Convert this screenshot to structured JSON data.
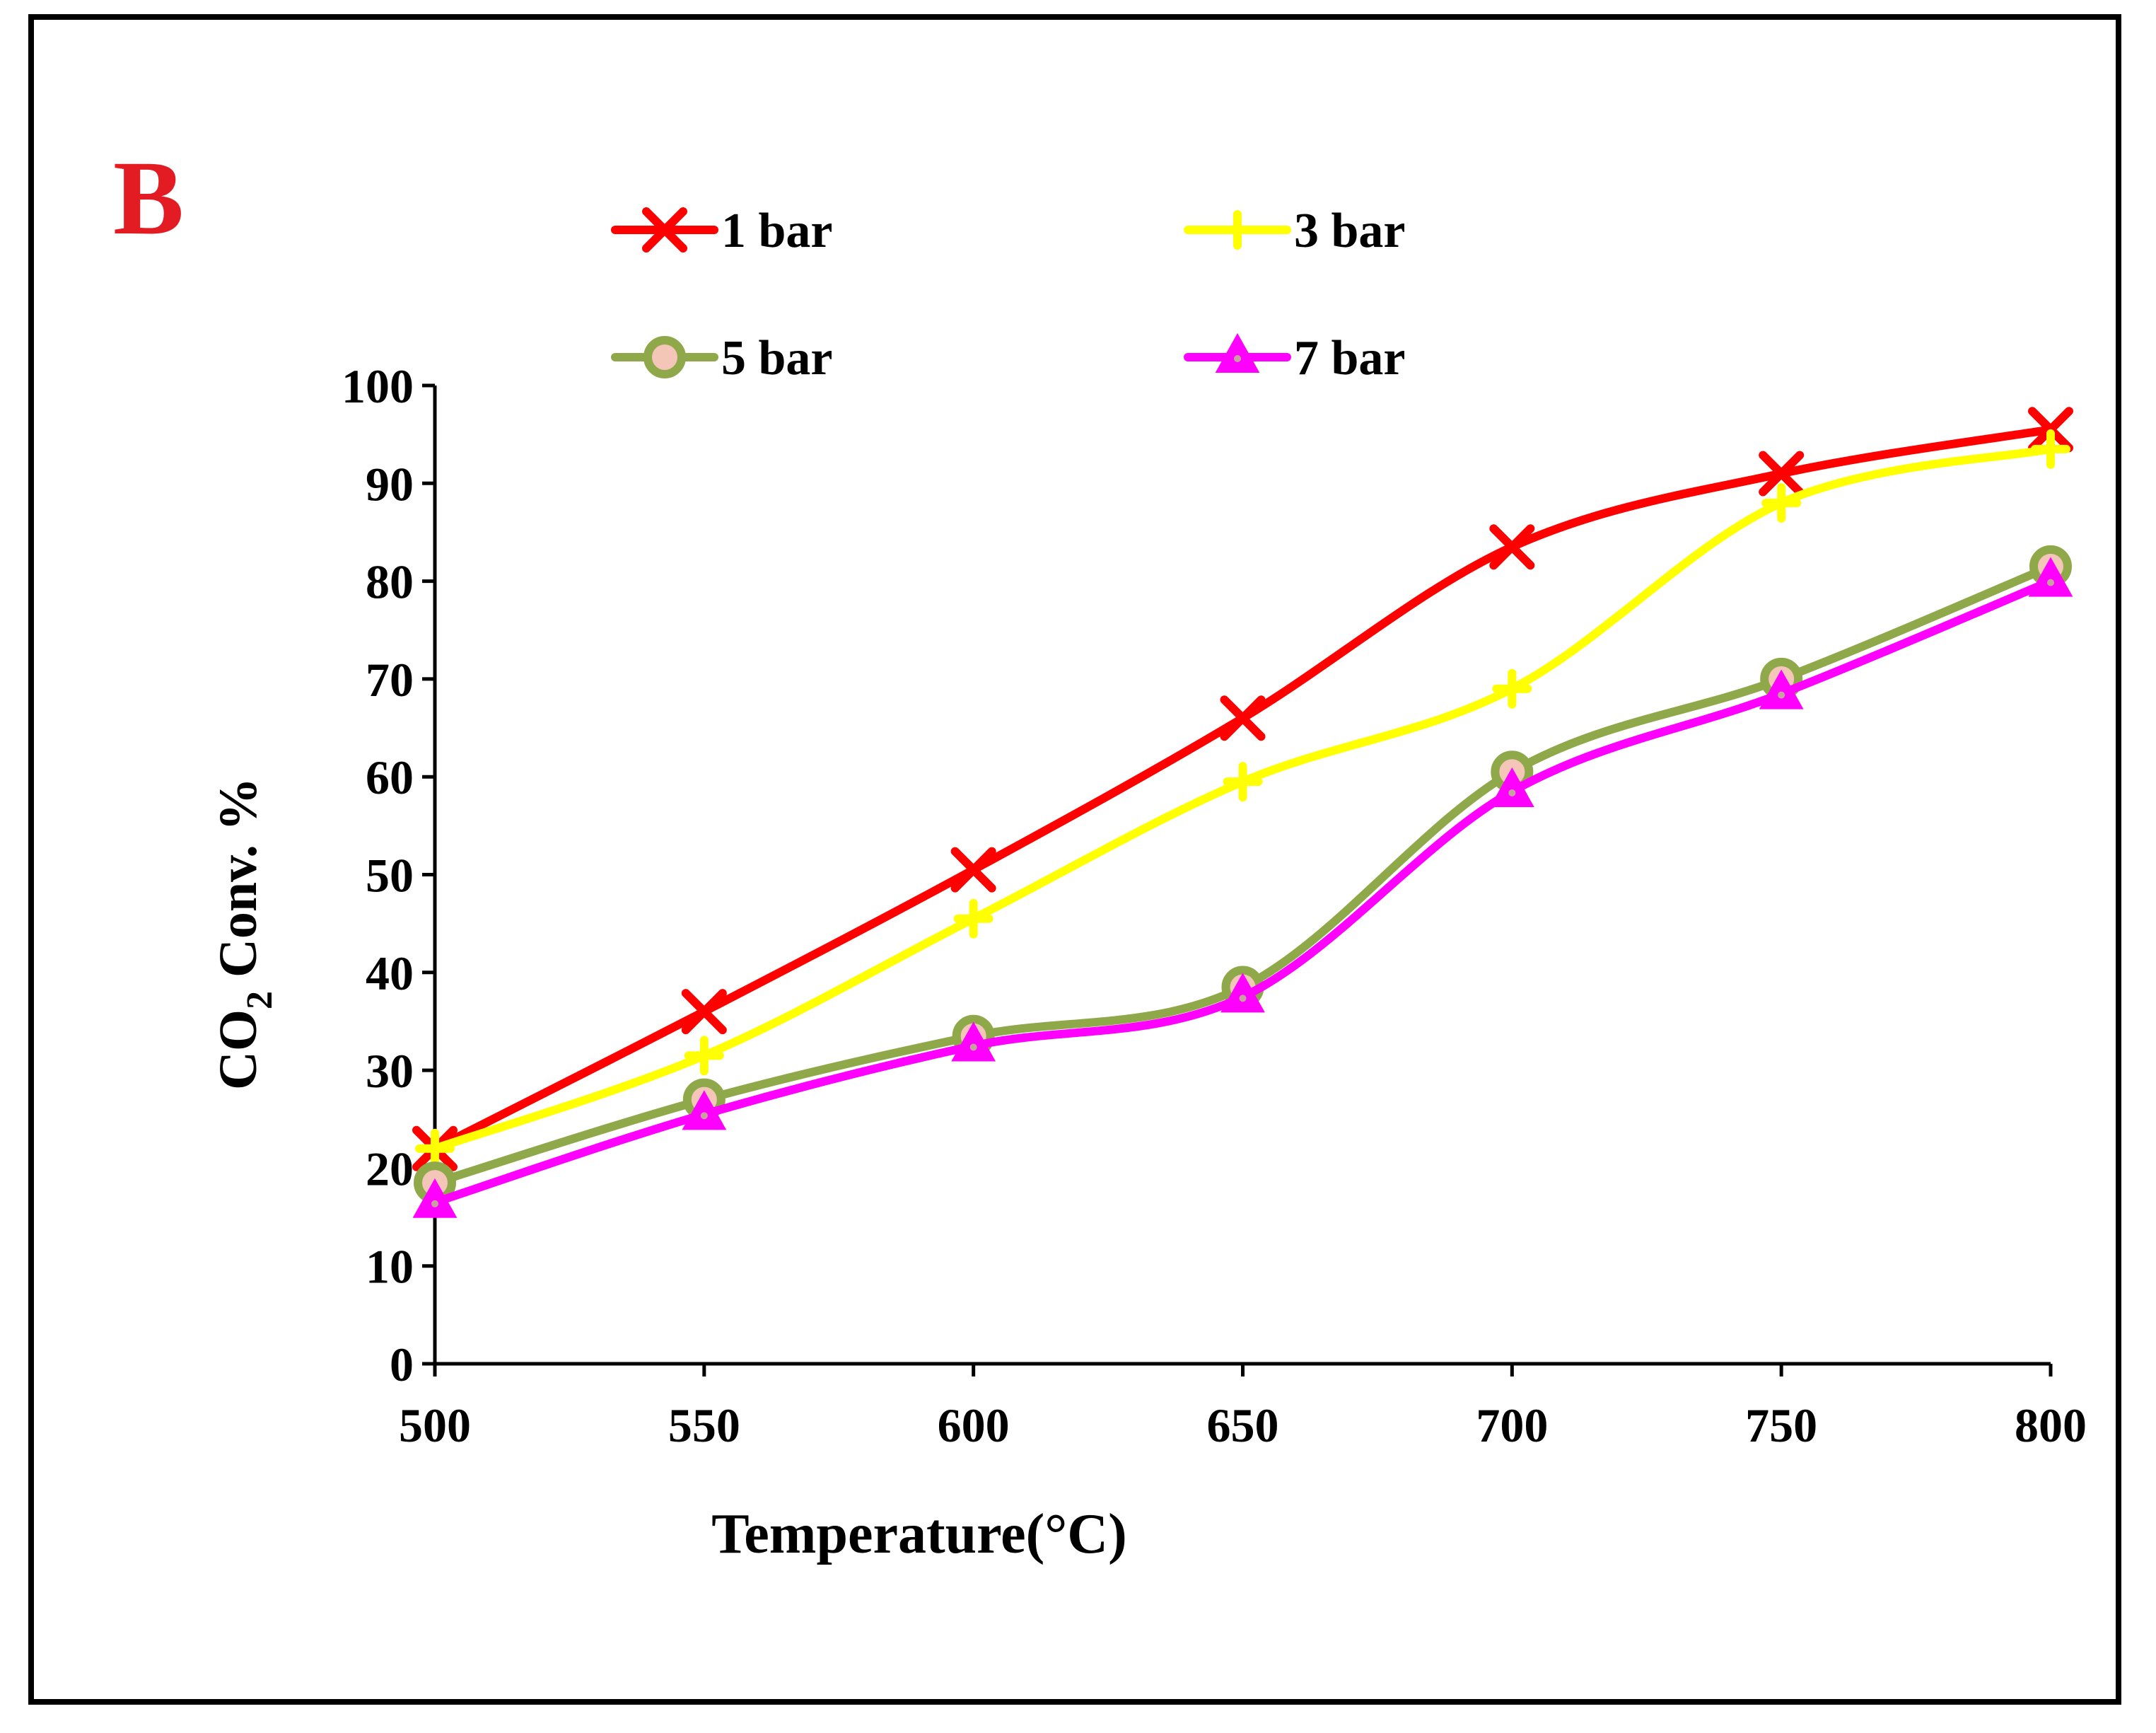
{
  "chart_data": {
    "type": "line",
    "panel_label": "B",
    "xlabel": "Temperature",
    "xlabel_unit": "(°C)",
    "ylabel_prefix": "CO",
    "ylabel_sub": "2",
    "ylabel_suffix": " Conv. %",
    "x": [
      500,
      550,
      600,
      650,
      700,
      750,
      800
    ],
    "xlim": [
      500,
      800
    ],
    "ylim": [
      0,
      100
    ],
    "xticks": [
      "500",
      "550",
      "600",
      "650",
      "700",
      "750",
      "800"
    ],
    "yticks": [
      "0",
      "10",
      "20",
      "30",
      "40",
      "50",
      "60",
      "70",
      "80",
      "90",
      "100"
    ],
    "grid": false,
    "legend_position": "top",
    "series": [
      {
        "name": "1 bar",
        "values": [
          22,
          36,
          50.5,
          66,
          83.5,
          91,
          95.5
        ],
        "color": "#ff0000",
        "marker": "x"
      },
      {
        "name": "3 bar",
        "values": [
          22,
          31.5,
          45.5,
          59.5,
          69,
          88,
          93.5
        ],
        "color": "#ffff00",
        "marker": "plus"
      },
      {
        "name": "5 bar",
        "values": [
          18.5,
          27,
          33.5,
          38.5,
          60.5,
          70,
          81.5
        ],
        "color": "#8fa84a",
        "marker": "circle"
      },
      {
        "name": "7 bar",
        "values": [
          16.5,
          25.5,
          32.5,
          37.5,
          58.5,
          68.5,
          80
        ],
        "color": "#ff00ff",
        "marker": "triangle"
      }
    ]
  }
}
